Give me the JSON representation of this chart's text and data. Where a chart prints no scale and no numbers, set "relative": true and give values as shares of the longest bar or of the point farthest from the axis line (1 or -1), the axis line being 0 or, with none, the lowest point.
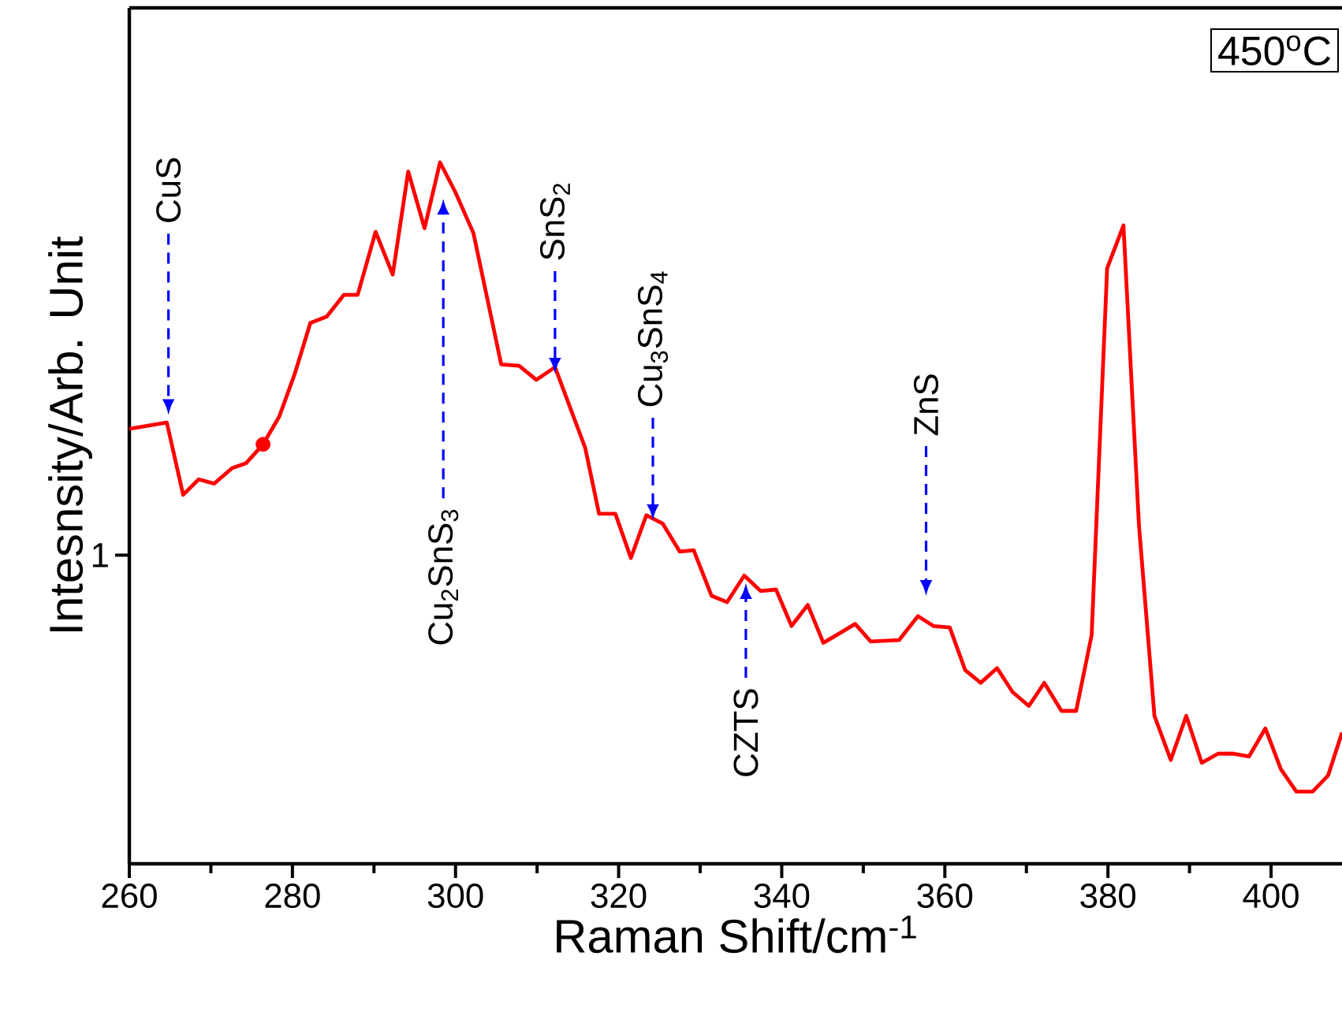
{
  "chart_data": {
    "type": "line",
    "xlabel": "Raman Shift/cm$^{-1}$",
    "ylabel": "Intesnsity/Arb. Unit",
    "relative": true,
    "xlim": [
      260,
      408.7
    ],
    "xticks": [
      260,
      280,
      300,
      320,
      340,
      360,
      380,
      400
    ],
    "x": [
      260.0,
      264.6,
      266.6,
      268.5,
      270.4,
      272.6,
      274.3,
      276.4,
      278.4,
      280.3,
      282.2,
      284.2,
      286.3,
      288.0,
      290.2,
      292.3,
      294.2,
      296.2,
      298.1,
      300.0,
      302.2,
      305.6,
      307.8,
      309.9,
      312.2,
      315.9,
      317.6,
      319.6,
      321.5,
      323.4,
      325.4,
      327.5,
      329.2,
      331.4,
      333.3,
      335.4,
      337.4,
      339.3,
      341.2,
      343.2,
      345.1,
      347.0,
      349.0,
      350.9,
      354.4,
      356.7,
      358.6,
      360.6,
      362.5,
      364.4,
      366.4,
      368.3,
      370.3,
      372.2,
      374.3,
      376.1,
      378.0,
      379.9,
      381.9,
      383.8,
      385.7,
      387.7,
      389.6,
      391.5,
      393.5,
      395.4,
      397.3,
      399.3,
      401.2,
      403.1,
      405.1,
      407.0,
      408.7
    ],
    "series": [
      {
        "color": "#ff0000",
        "marker": "none",
        "values": [
          0.62,
          0.629,
          0.526,
          0.548,
          0.542,
          0.564,
          0.571,
          0.598,
          0.638,
          0.699,
          0.771,
          0.78,
          0.811,
          0.811,
          0.901,
          0.84,
          0.987,
          0.906,
          1.0,
          0.957,
          0.899,
          0.712,
          0.71,
          0.69,
          0.708,
          0.593,
          0.499,
          0.499,
          0.436,
          0.497,
          0.485,
          0.445,
          0.447,
          0.382,
          0.373,
          0.411,
          0.389,
          0.391,
          0.339,
          0.369,
          0.315,
          0.328,
          0.342,
          0.317,
          0.319,
          0.353,
          0.339,
          0.337,
          0.276,
          0.258,
          0.279,
          0.245,
          0.225,
          0.258,
          0.218,
          0.218,
          0.326,
          0.849,
          0.91,
          0.483,
          0.211,
          0.148,
          0.211,
          0.144,
          0.157,
          0.157,
          0.153,
          0.193,
          0.135,
          0.103,
          0.103,
          0.126,
          0.187
        ]
      },
      {
        "type": "scatter",
        "color": "#ff0000",
        "marker": "circle",
        "x": [
          276.4
        ],
        "values": [
          0.598
        ]
      }
    ],
    "annotations": [
      "CuS",
      "Cu$_{2}$SnS$_{3}$",
      "SnS$_{2}$",
      "Cu$_{3}$SnS$_{4}$",
      "CZTS",
      "ZnS",
      "1",
      "450$^{o}$C"
    ]
  }
}
